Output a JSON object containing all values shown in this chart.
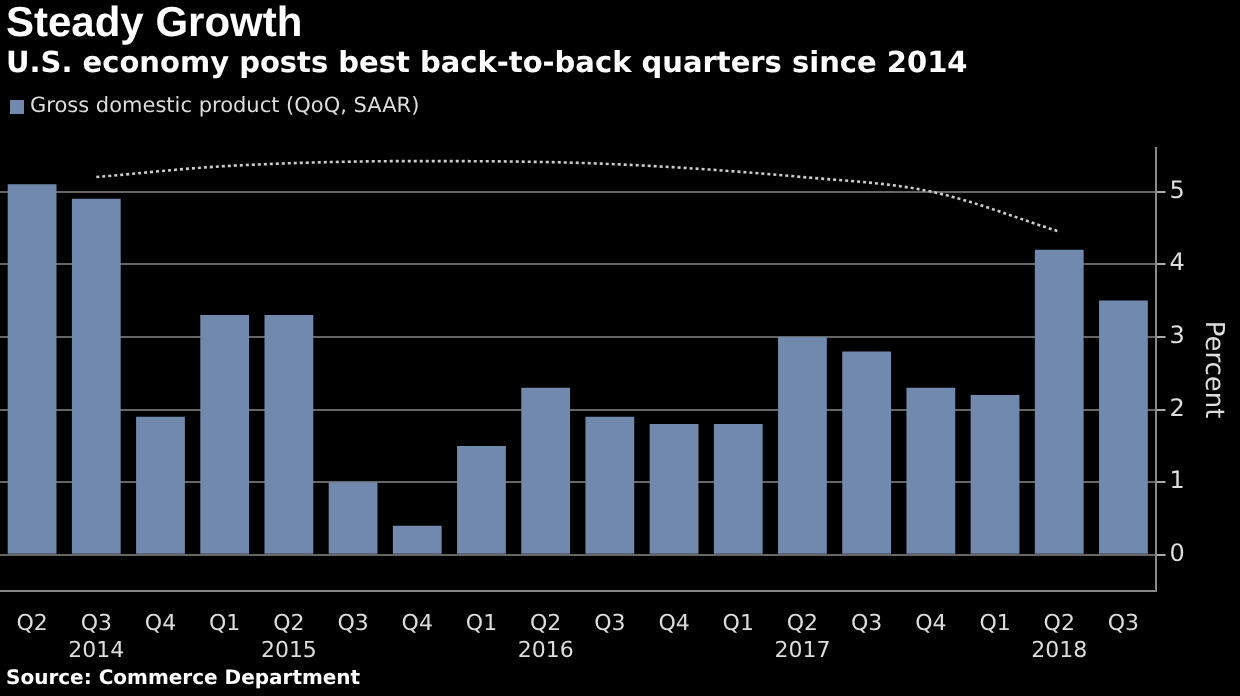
{
  "chart_data": {
    "type": "bar",
    "title": "Steady Growth",
    "subtitle": "U.S. economy posts best back-to-back quarters since 2014",
    "categories": [
      "Q2",
      "Q3\n2014",
      "Q4",
      "Q1",
      "Q2\n2015",
      "Q3",
      "Q4",
      "Q1",
      "Q2\n2016",
      "Q3",
      "Q4",
      "Q1",
      "Q2\n2017",
      "Q3",
      "Q4",
      "Q1",
      "Q2\n2018",
      "Q3"
    ],
    "series": [
      {
        "name": "Gross domestic product (QoQ, SAAR)",
        "color": "#7189ac",
        "values": [
          5.1,
          4.9,
          1.9,
          3.3,
          3.3,
          1.0,
          0.4,
          1.5,
          2.3,
          1.9,
          1.8,
          1.8,
          3.0,
          2.8,
          2.3,
          2.2,
          4.2,
          3.5
        ]
      },
      {
        "type": "line",
        "color": "#cccccc",
        "line_style": "dotted",
        "marker": "none",
        "values": [
          null,
          5.2,
          null,
          5.35,
          null,
          null,
          5.42,
          null,
          null,
          5.38,
          null,
          null,
          5.2,
          null,
          5.0,
          null,
          4.45,
          null
        ]
      }
    ],
    "ylabel": "Percent",
    "ylim": [
      -0.5,
      5.6
    ],
    "yticks": [
      0,
      1,
      2,
      3,
      4,
      5
    ],
    "grid": "y",
    "legend": "top left",
    "annotations": [
      "Source: Commerce Department"
    ]
  }
}
